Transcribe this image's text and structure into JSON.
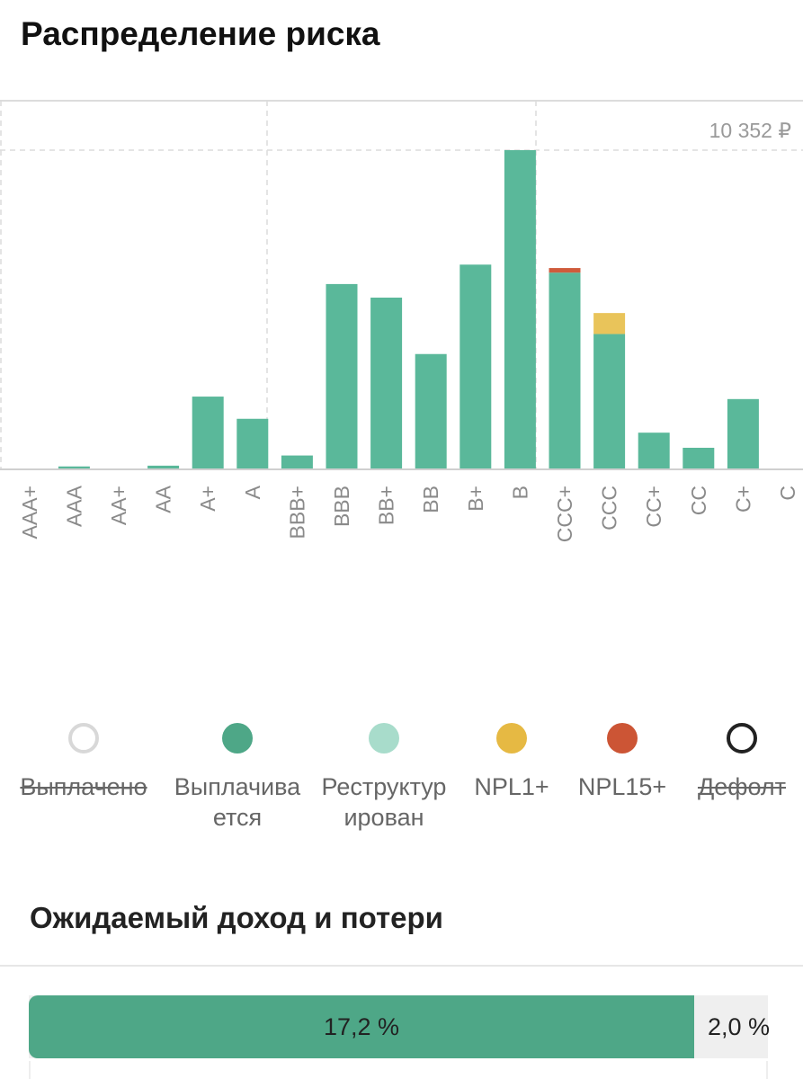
{
  "risk_section": {
    "title": "Распределение риска"
  },
  "chart_data": {
    "type": "bar",
    "stacked": true,
    "categories": [
      "AAA+",
      "AAA",
      "AA+",
      "AA",
      "A+",
      "A",
      "BBB+",
      "BBB",
      "BB+",
      "BB",
      "B+",
      "B",
      "CCC+",
      "CCC",
      "CC+",
      "CC",
      "C+",
      "C"
    ],
    "series": [
      {
        "name": "Выплачивается",
        "color": "#5ab89a",
        "values": [
          0,
          95,
          0,
          120,
          2360,
          1640,
          450,
          6010,
          5570,
          3740,
          6640,
          10352,
          6380,
          4390,
          1190,
          700,
          2280,
          0
        ]
      },
      {
        "name": "NPL1+",
        "color": "#e9c45a",
        "values": [
          0,
          0,
          0,
          0,
          0,
          0,
          0,
          0,
          0,
          0,
          0,
          0,
          0,
          680,
          0,
          0,
          0,
          0
        ]
      },
      {
        "name": "NPL15+",
        "color": "#cf5b3c",
        "values": [
          0,
          0,
          0,
          0,
          0,
          0,
          0,
          0,
          0,
          0,
          0,
          0,
          150,
          0,
          0,
          0,
          0,
          0
        ]
      }
    ],
    "max_label": "10 352 ₽",
    "ylim": [
      0,
      10352
    ],
    "grid": true
  },
  "legend": {
    "items": [
      {
        "label": "Выплачено",
        "color": "#d8d8d8",
        "style": "ring",
        "enabled": false
      },
      {
        "label": "Выплачивается",
        "color": "#4ea787",
        "style": "filled",
        "enabled": true
      },
      {
        "label": "Реструктурирован",
        "color": "#a8dccb",
        "style": "filled",
        "enabled": true
      },
      {
        "label": "NPL1+",
        "color": "#e6b943",
        "style": "filled",
        "enabled": true
      },
      {
        "label": "NPL15+",
        "color": "#cc5535",
        "style": "filled",
        "enabled": true
      },
      {
        "label": "Дефолт",
        "color": "#222222",
        "style": "ring",
        "enabled": false
      }
    ]
  },
  "income_section": {
    "title": "Ожидаемый доход и потери",
    "income_label": "17,2 %",
    "income_share": 0.9,
    "loss_label": "2,0 %",
    "income_color": "#4ea787",
    "loss_color": "#efefef"
  }
}
